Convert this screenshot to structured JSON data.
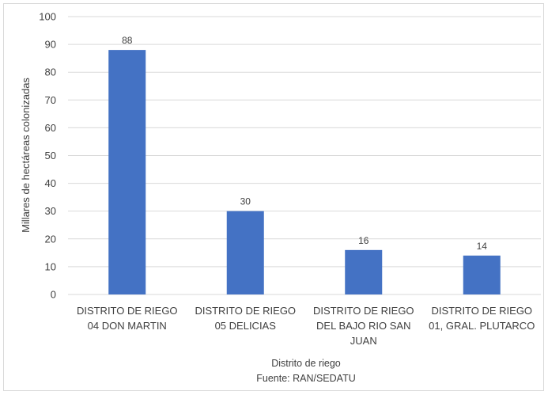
{
  "chart_data": {
    "type": "bar",
    "categories": [
      [
        "DISTRITO DE RIEGO",
        "04 DON MARTIN"
      ],
      [
        "DISTRITO DE RIEGO",
        "05 DELICIAS"
      ],
      [
        "DISTRITO DE RIEGO",
        "DEL BAJO RIO SAN",
        "JUAN"
      ],
      [
        "DISTRITO DE RIEGO",
        "01, GRAL. PLUTARCO"
      ]
    ],
    "values": [
      88,
      30,
      16,
      14
    ],
    "data_labels": [
      "88",
      "30",
      "16",
      "14"
    ],
    "ylabel": "Millares de hectáreas colonizadas",
    "xlabel": "Distrito de riego",
    "source": "Fuente: RAN/SEDATU",
    "ylim": [
      0,
      100
    ],
    "yticks": [
      0,
      10,
      20,
      30,
      40,
      50,
      60,
      70,
      80,
      90,
      100
    ],
    "grid": true,
    "bar_color": "#4472c4",
    "legend": "none"
  }
}
